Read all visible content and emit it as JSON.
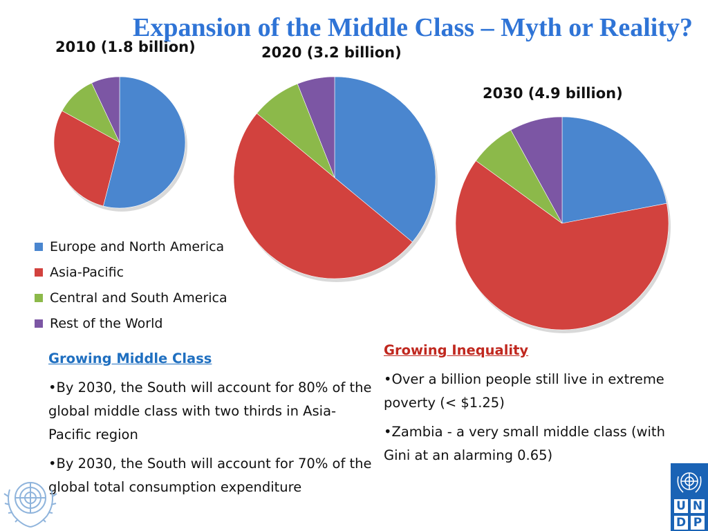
{
  "title": "Expansion of the Middle Class – Myth or Reality?",
  "chart_data": [
    {
      "type": "pie",
      "title": "2010 (1.8 billion)",
      "categories": [
        "Europe and North America",
        "Asia-Pacific",
        "Central and South America",
        "Rest of the World"
      ],
      "values": [
        54,
        29,
        10,
        7
      ]
    },
    {
      "type": "pie",
      "title": "2020 (3.2 billion)",
      "categories": [
        "Europe and North America",
        "Asia-Pacific",
        "Central and South America",
        "Rest of the World"
      ],
      "values": [
        36,
        50,
        8,
        6
      ]
    },
    {
      "type": "pie",
      "title": "2030 (4.9 billion)",
      "categories": [
        "Europe and North America",
        "Asia-Pacific",
        "Central and South America",
        "Rest of the World"
      ],
      "values": [
        22,
        63,
        7,
        8
      ]
    }
  ],
  "legend": {
    "items": [
      {
        "label": "Europe and North America",
        "color": "#4a86cf"
      },
      {
        "label": "Asia-Pacific",
        "color": "#d2423e"
      },
      {
        "label": "Central and South America",
        "color": "#8cb94a"
      },
      {
        "label": "Rest of the World",
        "color": "#7c56a4"
      }
    ]
  },
  "left_text": {
    "heading": "Growing Middle Class",
    "bullets": [
      "•By 2030, the  South will account for 80% of the global middle class with two thirds in Asia-Pacific region",
      "•By 2030, the South will account for 70% of the global total consumption expenditure"
    ]
  },
  "right_text": {
    "heading": "Growing Inequality",
    "bullets": [
      "•Over a billion people still live in extreme poverty (< $1.25)",
      "•Zambia -  a very small middle class (with Gini at an alarming 0.65)"
    ]
  },
  "logo": {
    "undp_letters": [
      "U",
      "N",
      "D",
      "P"
    ]
  }
}
